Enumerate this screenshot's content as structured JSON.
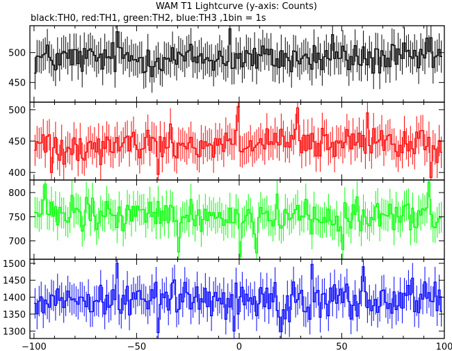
{
  "chart_data": {
    "type": "line",
    "title": "WAM T1 Lightcurve (y-axis: Counts)",
    "subtitle": "black:TH0, red:TH1, green:TH2, blue:TH3 ,1bin = 1s",
    "xlim": [
      -102,
      100
    ],
    "x_ticks": [
      -100,
      -50,
      0,
      50,
      100
    ],
    "x": {
      "start": -100,
      "end": 98,
      "step": 1
    },
    "grid": false,
    "panels": [
      {
        "name": "TH0",
        "color": "#000000",
        "ylim": [
          417,
          545
        ],
        "y_ticks": [
          450,
          500
        ],
        "mean": 490,
        "noise": 19,
        "error_bar": 27,
        "spikes": [
          [
            -60,
            535
          ],
          [
            -5,
            540
          ],
          [
            45,
            530
          ],
          [
            93,
            525
          ]
        ]
      },
      {
        "name": "TH1",
        "color": "#ff0000",
        "ylim": [
          388,
          512
        ],
        "y_ticks": [
          400,
          450,
          500
        ],
        "mean": 445,
        "noise": 19,
        "error_bar": 25,
        "spikes": [
          [
            -1,
            505
          ],
          [
            28,
            503
          ],
          [
            62,
            495
          ],
          [
            -92,
            400
          ],
          [
            -40,
            397
          ],
          [
            93,
            392
          ]
        ]
      },
      {
        "name": "TH2",
        "color": "#00ff00",
        "ylim": [
          662,
          826
        ],
        "y_ticks": [
          700,
          750,
          800
        ],
        "mean": 752,
        "noise": 26,
        "error_bar": 32,
        "spikes": [
          [
            -95,
            818
          ],
          [
            92,
            822
          ],
          [
            -30,
            677
          ],
          [
            0,
            668
          ],
          [
            8,
            675
          ],
          [
            50,
            682
          ]
        ]
      },
      {
        "name": "TH3",
        "color": "#0000ff",
        "ylim": [
          1278,
          1512
        ],
        "y_ticks": [
          1300,
          1350,
          1400,
          1450,
          1500
        ],
        "mean": 1395,
        "noise": 38,
        "error_bar": 45,
        "spikes": [
          [
            -60,
            1500
          ],
          [
            35,
            1497
          ],
          [
            60,
            1490
          ],
          [
            -40,
            1295
          ],
          [
            -3,
            1300
          ],
          [
            20,
            1298
          ]
        ]
      }
    ]
  }
}
